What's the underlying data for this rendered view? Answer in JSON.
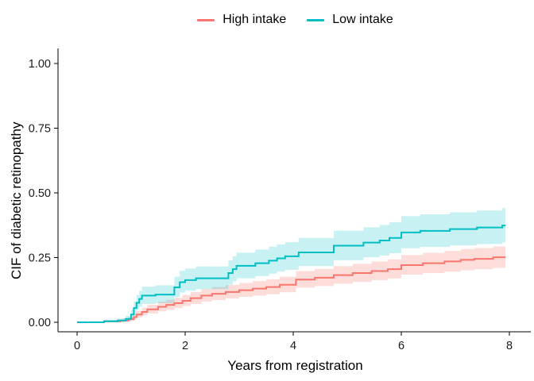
{
  "legend": {
    "items": [
      {
        "label": "High intake",
        "color": "#F8766D"
      },
      {
        "label": "Low intake",
        "color": "#00BFC4"
      }
    ]
  },
  "chart_data": {
    "type": "line",
    "subtype": "step-cumulative-incidence-with-confidence-bands",
    "title": "",
    "xlabel": "Years from registration",
    "ylabel": "CIF of diabetic retinopathy",
    "xlim": [
      0,
      8
    ],
    "ylim": [
      0,
      1
    ],
    "xticks": [
      {
        "value": 0,
        "label": "0"
      },
      {
        "value": 2,
        "label": "2"
      },
      {
        "value": 4,
        "label": "4"
      },
      {
        "value": 6,
        "label": "6"
      },
      {
        "value": 8,
        "label": "8"
      }
    ],
    "yticks": [
      {
        "value": 0,
        "label": "0.00"
      },
      {
        "value": 0.25,
        "label": "0.25"
      },
      {
        "value": 0.5,
        "label": "0.50"
      },
      {
        "value": 0.75,
        "label": "0.75"
      },
      {
        "value": 1,
        "label": "1.00"
      }
    ],
    "grid": false,
    "legend_position": "top-center",
    "point_format": "[time_years, cif, ci_lower, ci_upper]",
    "series": [
      {
        "name": "High intake",
        "color": "#F8766D",
        "band_color": "rgba(248,118,109,0.25)",
        "points": [
          [
            0.0,
            0.0,
            0.0,
            0.0
          ],
          [
            0.5,
            0.003,
            0.0,
            0.008
          ],
          [
            0.8,
            0.006,
            0.001,
            0.013
          ],
          [
            0.95,
            0.012,
            0.005,
            0.021
          ],
          [
            1.05,
            0.02,
            0.01,
            0.032
          ],
          [
            1.1,
            0.03,
            0.018,
            0.044
          ],
          [
            1.2,
            0.04,
            0.026,
            0.056
          ],
          [
            1.3,
            0.05,
            0.034,
            0.068
          ],
          [
            1.5,
            0.06,
            0.042,
            0.079
          ],
          [
            1.65,
            0.067,
            0.048,
            0.087
          ],
          [
            1.8,
            0.074,
            0.055,
            0.095
          ],
          [
            1.95,
            0.083,
            0.063,
            0.105
          ],
          [
            2.1,
            0.093,
            0.071,
            0.117
          ],
          [
            2.3,
            0.103,
            0.08,
            0.128
          ],
          [
            2.5,
            0.11,
            0.086,
            0.136
          ],
          [
            2.75,
            0.117,
            0.092,
            0.144
          ],
          [
            3.0,
            0.124,
            0.098,
            0.152
          ],
          [
            3.25,
            0.13,
            0.103,
            0.159
          ],
          [
            3.5,
            0.136,
            0.108,
            0.166
          ],
          [
            3.75,
            0.145,
            0.116,
            0.176
          ],
          [
            4.05,
            0.165,
            0.134,
            0.198
          ],
          [
            4.4,
            0.172,
            0.14,
            0.206
          ],
          [
            4.75,
            0.182,
            0.149,
            0.217
          ],
          [
            5.1,
            0.19,
            0.156,
            0.226
          ],
          [
            5.45,
            0.198,
            0.163,
            0.235
          ],
          [
            5.75,
            0.205,
            0.169,
            0.243
          ],
          [
            6.0,
            0.221,
            0.184,
            0.26
          ],
          [
            6.4,
            0.228,
            0.19,
            0.268
          ],
          [
            6.8,
            0.235,
            0.196,
            0.276
          ],
          [
            7.1,
            0.241,
            0.201,
            0.283
          ],
          [
            7.35,
            0.245,
            0.205,
            0.287
          ],
          [
            7.7,
            0.251,
            0.21,
            0.293
          ],
          [
            7.93,
            0.251,
            0.21,
            0.293
          ]
        ]
      },
      {
        "name": "Low intake",
        "color": "#00BFC4",
        "band_color": "rgba(0,191,196,0.22)",
        "points": [
          [
            0.0,
            0.0,
            0.0,
            0.0
          ],
          [
            0.5,
            0.004,
            0.0,
            0.01
          ],
          [
            0.75,
            0.007,
            0.001,
            0.015
          ],
          [
            0.9,
            0.013,
            0.004,
            0.025
          ],
          [
            1.0,
            0.03,
            0.015,
            0.049
          ],
          [
            1.05,
            0.055,
            0.032,
            0.081
          ],
          [
            1.1,
            0.075,
            0.048,
            0.105
          ],
          [
            1.15,
            0.09,
            0.06,
            0.122
          ],
          [
            1.2,
            0.103,
            0.071,
            0.138
          ],
          [
            1.45,
            0.107,
            0.074,
            0.143
          ],
          [
            1.8,
            0.135,
            0.098,
            0.176
          ],
          [
            1.9,
            0.155,
            0.115,
            0.199
          ],
          [
            2.0,
            0.163,
            0.122,
            0.208
          ],
          [
            2.2,
            0.17,
            0.128,
            0.216
          ],
          [
            2.8,
            0.19,
            0.145,
            0.239
          ],
          [
            2.88,
            0.205,
            0.158,
            0.255
          ],
          [
            2.95,
            0.218,
            0.17,
            0.269
          ],
          [
            3.3,
            0.228,
            0.179,
            0.281
          ],
          [
            3.55,
            0.238,
            0.188,
            0.292
          ],
          [
            3.7,
            0.247,
            0.196,
            0.301
          ],
          [
            3.85,
            0.255,
            0.203,
            0.31
          ],
          [
            4.1,
            0.27,
            0.217,
            0.326
          ],
          [
            4.75,
            0.296,
            0.24,
            0.354
          ],
          [
            5.3,
            0.308,
            0.251,
            0.367
          ],
          [
            5.6,
            0.316,
            0.258,
            0.376
          ],
          [
            5.78,
            0.326,
            0.267,
            0.387
          ],
          [
            6.0,
            0.347,
            0.286,
            0.41
          ],
          [
            6.35,
            0.353,
            0.291,
            0.417
          ],
          [
            6.9,
            0.36,
            0.297,
            0.425
          ],
          [
            7.4,
            0.366,
            0.302,
            0.432
          ],
          [
            7.87,
            0.374,
            0.309,
            0.441
          ],
          [
            7.93,
            0.374,
            0.309,
            0.441
          ]
        ]
      }
    ],
    "style": {
      "axis_color": "#000000",
      "tick_label_color": "#1a1a1a",
      "tick_label_size": 14.5,
      "axis_title_size": 17,
      "line_width": 2
    }
  }
}
